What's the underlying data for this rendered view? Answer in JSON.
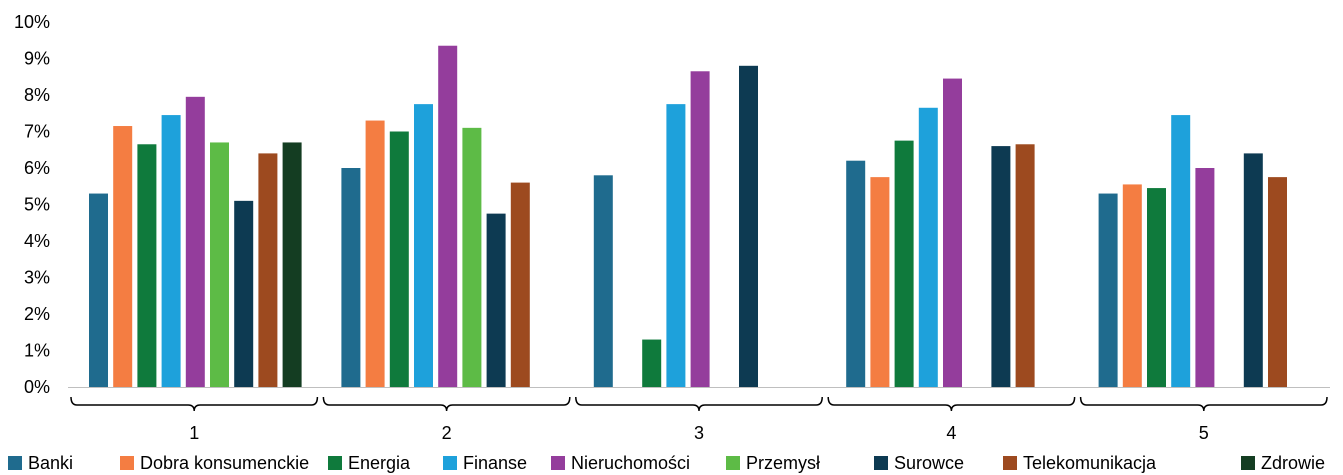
{
  "chart_data": {
    "type": "bar",
    "categories": [
      "1",
      "2",
      "3",
      "4",
      "5"
    ],
    "ylim": [
      0,
      10
    ],
    "yticks": [
      "0%",
      "1%",
      "2%",
      "3%",
      "4%",
      "5%",
      "6%",
      "7%",
      "8%",
      "9%",
      "10%"
    ],
    "legend_position": "bottom",
    "grid": false,
    "series": [
      {
        "name": "Banki",
        "color": "#1F6B8E",
        "values": [
          5.3,
          6.0,
          5.8,
          6.2,
          5.3
        ]
      },
      {
        "name": "Dobra konsumenckie",
        "color": "#F47D42",
        "values": [
          7.15,
          7.3,
          null,
          5.75,
          5.55
        ]
      },
      {
        "name": "Energia",
        "color": "#0F7A3C",
        "values": [
          6.65,
          7.0,
          1.3,
          6.75,
          5.45
        ]
      },
      {
        "name": "Finanse",
        "color": "#1EA1DB",
        "values": [
          7.45,
          7.75,
          7.75,
          7.65,
          7.45
        ]
      },
      {
        "name": "Nieruchomości",
        "color": "#943D9C",
        "values": [
          7.95,
          9.35,
          8.65,
          8.45,
          6.0
        ]
      },
      {
        "name": "Przemysł",
        "color": "#5DBB46",
        "values": [
          6.7,
          7.1,
          null,
          null,
          null
        ]
      },
      {
        "name": "Surowce",
        "color": "#0D3A52",
        "values": [
          5.1,
          4.75,
          8.8,
          6.6,
          6.4
        ]
      },
      {
        "name": "Telekomunikacja",
        "color": "#9D4A1F",
        "values": [
          6.4,
          5.6,
          null,
          6.65,
          5.75
        ]
      },
      {
        "name": "Zdrowie",
        "color": "#143D22",
        "values": [
          6.7,
          null,
          null,
          null,
          null
        ]
      }
    ]
  }
}
